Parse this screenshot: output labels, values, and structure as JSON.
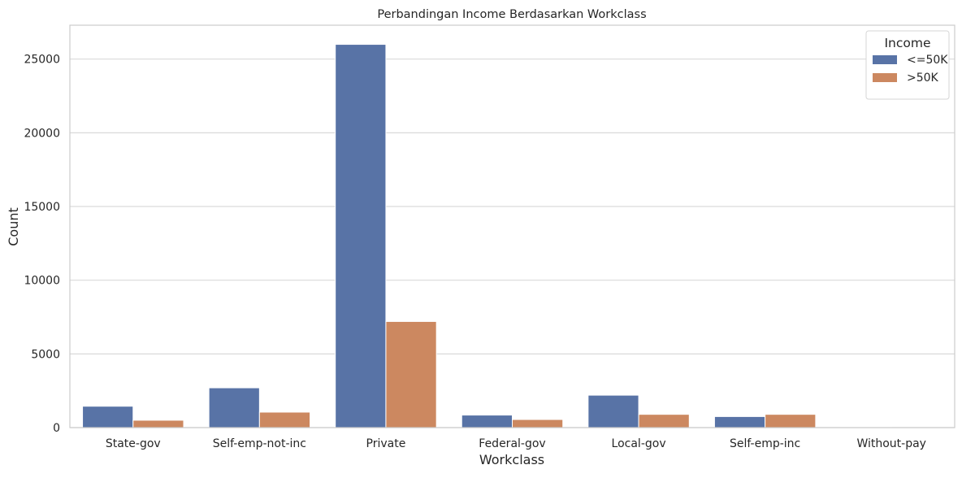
{
  "chart_data": {
    "type": "bar",
    "title": "Perbandingan Income Berdasarkan Workclass",
    "xlabel": "Workclass",
    "ylabel": "Count",
    "categories": [
      "State-gov",
      "Self-emp-not-inc",
      "Private",
      "Federal-gov",
      "Local-gov",
      "Self-emp-inc",
      "Without-pay"
    ],
    "series": [
      {
        "name": "<=50K",
        "values": [
          1450,
          2700,
          26000,
          850,
          2200,
          750,
          15
        ]
      },
      {
        "name": ">50K",
        "values": [
          500,
          1050,
          7200,
          550,
          900,
          900,
          0
        ]
      }
    ],
    "ylim": [
      0,
      27300
    ],
    "yticks": [
      0,
      5000,
      10000,
      15000,
      20000,
      25000
    ],
    "legend": {
      "title": "Income",
      "placement": "top-right"
    },
    "grid": "horizontal",
    "colors": {
      "<=50K": "#5873a6",
      ">50K": "#cc8860"
    }
  }
}
